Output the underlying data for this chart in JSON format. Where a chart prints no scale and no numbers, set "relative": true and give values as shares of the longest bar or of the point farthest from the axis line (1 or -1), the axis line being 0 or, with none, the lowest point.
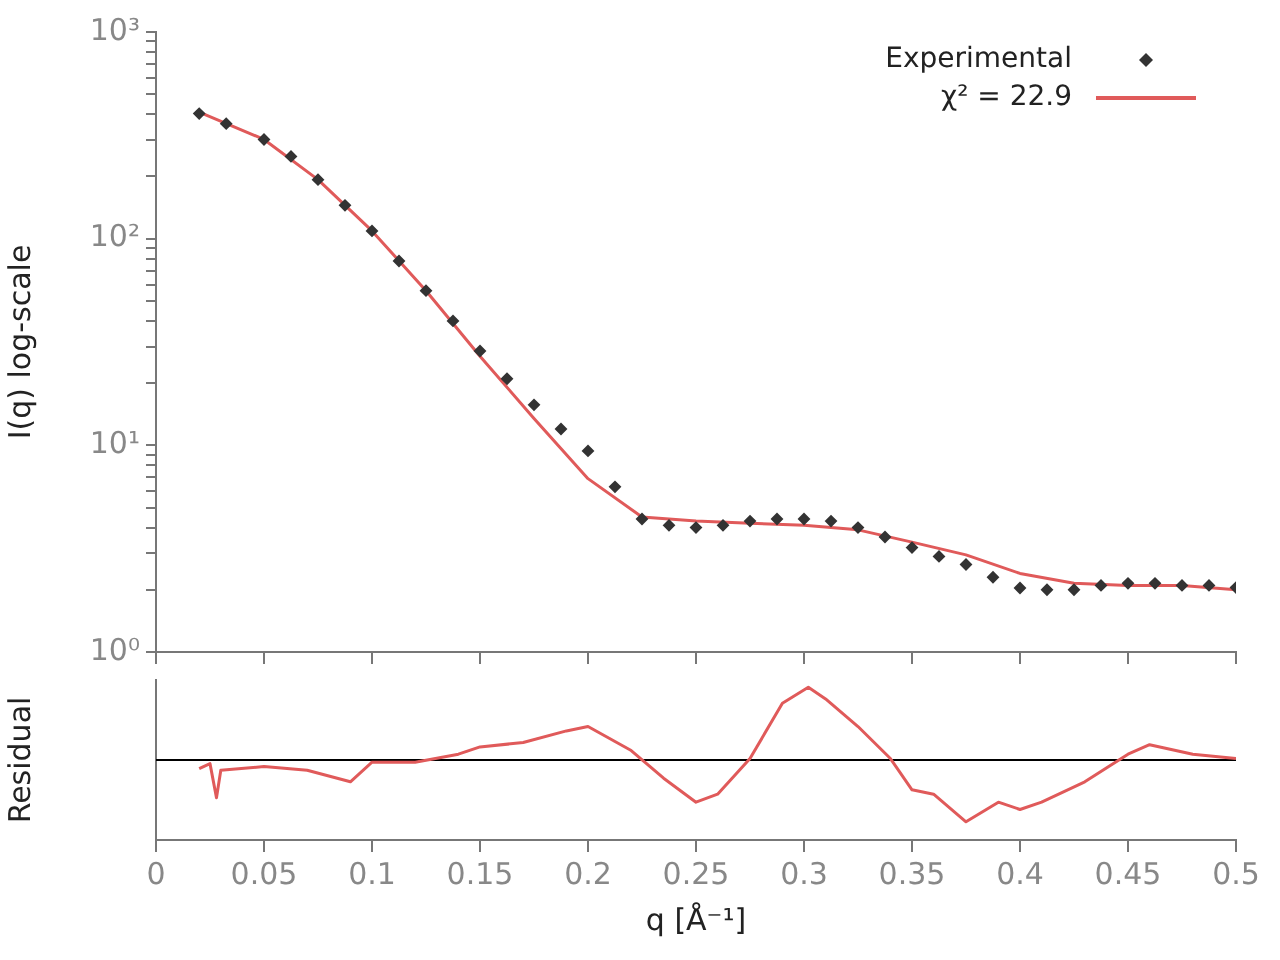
{
  "chart_data": [
    {
      "type": "scatter",
      "ylabel": "I(q) log-scale",
      "log": "y",
      "legend": "top right",
      "tick_labels": "y",
      "xlim": [
        0,
        0.5
      ],
      "xticks": [
        {
          "value": 0,
          "label": null
        },
        {
          "value": 0.05,
          "label": null
        },
        {
          "value": 0.1,
          "label": null
        },
        {
          "value": 0.15,
          "label": null
        },
        {
          "value": 0.2,
          "label": null
        },
        {
          "value": 0.25,
          "label": null
        },
        {
          "value": 0.3,
          "label": null
        },
        {
          "value": 0.35,
          "label": null
        },
        {
          "value": 0.4,
          "label": null
        },
        {
          "value": 0.45,
          "label": null
        },
        {
          "value": 0.5,
          "label": null
        }
      ],
      "ylim": [
        1,
        1000
      ],
      "yticks": [
        {
          "value": 1,
          "label": "10⁰"
        },
        {
          "value": 2,
          "label": null
        },
        {
          "value": 3,
          "label": null
        },
        {
          "value": 4,
          "label": null
        },
        {
          "value": 5,
          "label": null
        },
        {
          "value": 6,
          "label": null
        },
        {
          "value": 7,
          "label": null
        },
        {
          "value": 8,
          "label": null
        },
        {
          "value": 9,
          "label": null
        },
        {
          "value": 10,
          "label": "10¹"
        },
        {
          "value": 20,
          "label": null
        },
        {
          "value": 30,
          "label": null
        },
        {
          "value": 40,
          "label": null
        },
        {
          "value": 50,
          "label": null
        },
        {
          "value": 60,
          "label": null
        },
        {
          "value": 70,
          "label": null
        },
        {
          "value": 80,
          "label": null
        },
        {
          "value": 90,
          "label": null
        },
        {
          "value": 100,
          "label": "10²"
        },
        {
          "value": 200,
          "label": null
        },
        {
          "value": 300,
          "label": null
        },
        {
          "value": 400,
          "label": null
        },
        {
          "value": 500,
          "label": null
        },
        {
          "value": 600,
          "label": null
        },
        {
          "value": 700,
          "label": null
        },
        {
          "value": 800,
          "label": null
        },
        {
          "value": 900,
          "label": null
        },
        {
          "value": 1000,
          "label": "10³"
        }
      ],
      "series": [
        {
          "name": "Experimental",
          "marker": "diamond",
          "color": "#333333",
          "x": [
            0.02,
            0.0325,
            0.05,
            0.0625,
            0.075,
            0.0875,
            0.1,
            0.1125,
            0.125,
            0.1375,
            0.15,
            0.1625,
            0.175,
            0.1875,
            0.2,
            0.2125,
            0.225,
            0.2375,
            0.25,
            0.2625,
            0.275,
            0.2875,
            0.3,
            0.3125,
            0.325,
            0.3375,
            0.35,
            0.3625,
            0.375,
            0.3875,
            0.4,
            0.4125,
            0.425,
            0.4375,
            0.45,
            0.4625,
            0.475,
            0.4875,
            0.5
          ],
          "values": [
            403,
            360,
            302,
            250,
            193,
            145,
            109,
            78,
            56,
            40,
            28.6,
            21,
            15.7,
            12,
            9.4,
            6.3,
            4.4,
            4.1,
            4.0,
            4.1,
            4.3,
            4.4,
            4.4,
            4.3,
            4.0,
            3.6,
            3.2,
            2.9,
            2.65,
            2.3,
            2.04,
            2.0,
            2.0,
            2.1,
            2.15,
            2.15,
            2.1,
            2.1,
            2.05
          ]
        },
        {
          "name": "χ² = 22.9",
          "type": "line",
          "color": "#e05a5a",
          "x": [
            0.02,
            0.05,
            0.075,
            0.1,
            0.125,
            0.15,
            0.175,
            0.2,
            0.225,
            0.25,
            0.275,
            0.3,
            0.325,
            0.35,
            0.375,
            0.4,
            0.425,
            0.45,
            0.475,
            0.5
          ],
          "values": [
            410,
            302,
            193,
            109,
            56,
            27,
            13.5,
            6.9,
            4.5,
            4.3,
            4.2,
            4.1,
            3.9,
            3.4,
            2.95,
            2.4,
            2.15,
            2.1,
            2.1,
            2.0
          ]
        }
      ]
    },
    {
      "type": "line",
      "relative": true,
      "ylabel": "Residual",
      "xlabel": "q [Å⁻¹]",
      "xlim": [
        0,
        0.5
      ],
      "xticks": [
        0,
        0.05,
        0.1,
        0.15,
        0.2,
        0.25,
        0.3,
        0.35,
        0.4,
        0.45,
        0.5
      ],
      "ref_lines": [
        {
          "axis": "y",
          "value": 0,
          "color": "#000000"
        }
      ],
      "series": [
        {
          "color": "#e05a5a",
          "x": [
            0.02,
            0.025,
            0.028,
            0.03,
            0.05,
            0.07,
            0.09,
            0.1,
            0.12,
            0.14,
            0.15,
            0.17,
            0.19,
            0.2,
            0.22,
            0.235,
            0.25,
            0.26,
            0.275,
            0.29,
            0.302,
            0.31,
            0.325,
            0.34,
            0.35,
            0.36,
            0.375,
            0.39,
            0.4,
            0.41,
            0.43,
            0.45,
            0.46,
            0.48,
            0.5
          ],
          "values": [
            -0.12,
            -0.05,
            -0.52,
            -0.14,
            -0.09,
            -0.14,
            -0.3,
            -0.03,
            -0.03,
            0.08,
            0.18,
            0.24,
            0.4,
            0.46,
            0.13,
            -0.25,
            -0.58,
            -0.47,
            0.02,
            0.78,
            1,
            0.84,
            0.46,
            0.02,
            -0.41,
            -0.47,
            -0.85,
            -0.58,
            -0.68,
            -0.58,
            -0.3,
            0.08,
            0.21,
            0.08,
            0.02
          ]
        }
      ]
    }
  ]
}
